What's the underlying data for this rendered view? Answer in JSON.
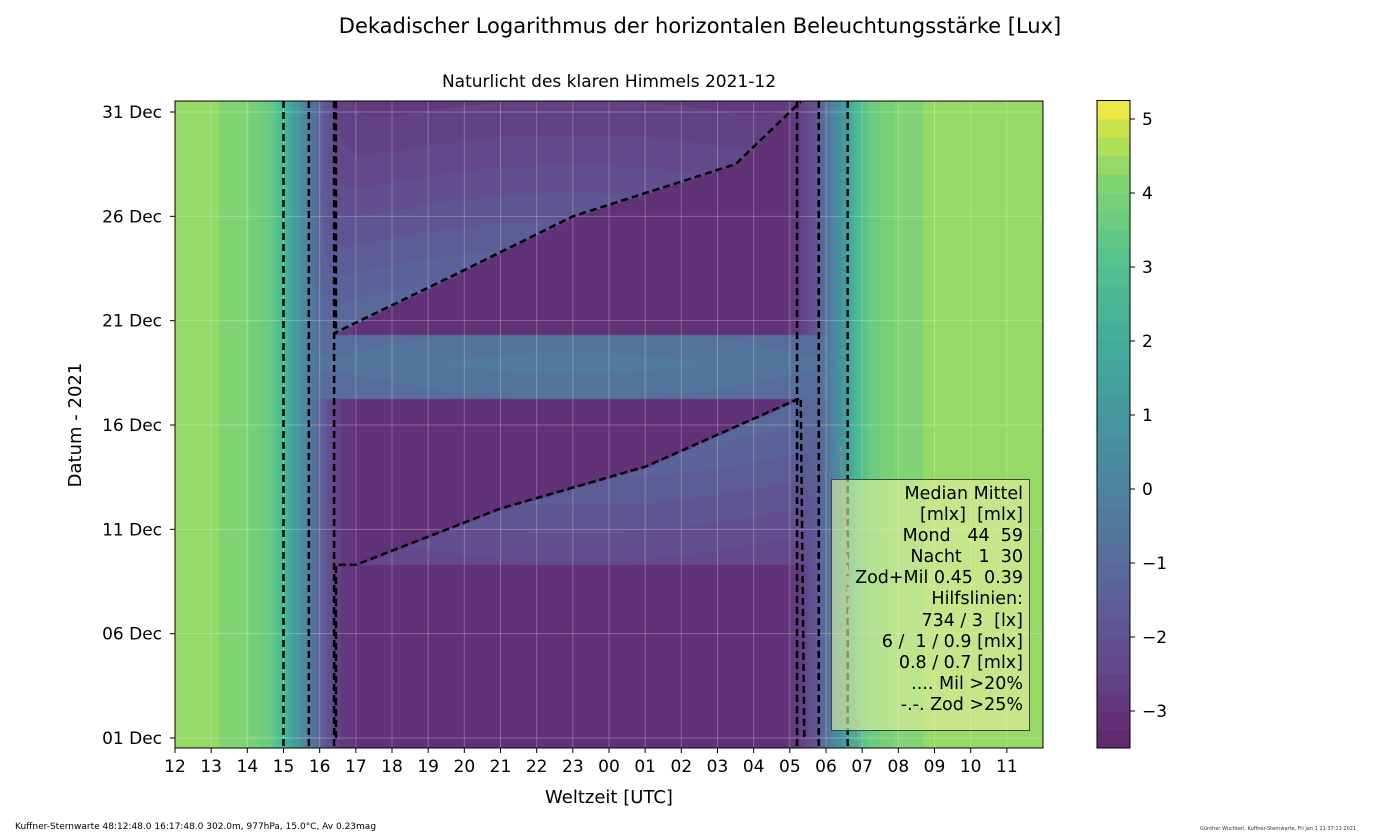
{
  "chart_data": {
    "type": "heatmap",
    "title": "Dekadischer Logarithmus der horizontalen Beleuchtungsstärke [Lux]",
    "subtitle": "Naturlicht des klaren Himmels 2021-12",
    "xlabel": "Weltzeit [UTC]",
    "ylabel": "Datum - 2021",
    "x_ticks": [
      "12",
      "13",
      "14",
      "15",
      "16",
      "17",
      "18",
      "19",
      "20",
      "21",
      "22",
      "23",
      "00",
      "01",
      "02",
      "03",
      "04",
      "05",
      "06",
      "07",
      "08",
      "09",
      "10",
      "11"
    ],
    "x_range_hours_from_noon": [
      0,
      24
    ],
    "y_ticks": [
      "01 Dec",
      "06 Dec",
      "11 Dec",
      "16 Dec",
      "21 Dec",
      "26 Dec",
      "31 Dec"
    ],
    "y_tick_days": [
      1,
      6,
      11,
      16,
      21,
      26,
      31
    ],
    "y_range_days": [
      0.5,
      31.5
    ],
    "colorbar": {
      "ticks": [
        "5",
        "4",
        "3",
        "2",
        "1",
        "0",
        "−1",
        "−2",
        "−3"
      ],
      "tick_values": [
        5,
        4,
        3,
        2,
        1,
        0,
        -1,
        -2,
        -3
      ],
      "range": [
        -3.5,
        5.25
      ],
      "step": 0.25,
      "colormap": "viridis"
    },
    "grid": true,
    "legend": {
      "placement": "bottom-right",
      "lines": [
        "Median Mittel",
        "[mlx]  [mlx]",
        "Mond   44  59",
        "Nacht   1  30",
        "Zod+Mil 0.45  0.39",
        "Hilfslinien:",
        "734 / 3  [lx]",
        "6 /  1 / 0.9 [mlx]",
        "0.8 / 0.7 [mlx]",
        ".... Mil >20%",
        "-.-. Zod >25%"
      ]
    },
    "model": {
      "sunset_contours_hours_from_noon": [
        3.0,
        3.7,
        4.4
      ],
      "sunrise_contours_hours_from_noon": [
        17.2,
        17.8,
        18.6
      ],
      "full_moon_day": 19
    }
  },
  "footer": {
    "left": "Kuffner-Sternwarte 48:12:48.0 16:17:48.0 302.0m,  977hPa, 15.0°C, Av 0.23mag",
    "right": "Günther Wuchterl, Kuffner-Sternwarte, Fri Jan  1 21:37:13 2021"
  }
}
